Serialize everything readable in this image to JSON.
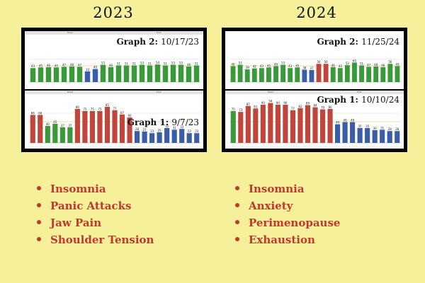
{
  "colors": {
    "background": "#f6f09a",
    "symptom_text": "#c0392b",
    "green": "#3a9a3a",
    "red": "#c0463b",
    "blue": "#3a5da8"
  },
  "columns": [
    {
      "year": "2023",
      "graphs": [
        {
          "label": "Graph 2:",
          "date": "10/17/23",
          "head_left": "Head",
          "head_right": "Foot",
          "chart_data": {
            "type": "bar",
            "values": [
              43,
              45,
              46,
              45,
              47,
              48,
              47,
              33,
              40,
              53,
              46,
              51,
              51,
              51,
              53,
              51,
              54,
              51,
              53,
              53,
              48,
              51
            ],
            "colors": [
              "g",
              "g",
              "g",
              "g",
              "g",
              "g",
              "g",
              "b",
              "b",
              "g",
              "g",
              "g",
              "g",
              "g",
              "g",
              "g",
              "g",
              "g",
              "g",
              "g",
              "g",
              "g"
            ]
          }
        },
        {
          "label": "Graph 1:",
          "date": "9/7/23",
          "head_left": "Head",
          "head_right": "Foot",
          "chart_data": {
            "type": "bar",
            "values": [
              66,
              66,
              40,
              45,
              37,
              37,
              80,
              75,
              75,
              75,
              85,
              77,
              67,
              60,
              28,
              27,
              23,
              25,
              35,
              31,
              33,
              23,
              23
            ],
            "colors": [
              "r",
              "r",
              "g",
              "g",
              "g",
              "g",
              "r",
              "r",
              "r",
              "r",
              "r",
              "r",
              "r",
              "r",
              "b",
              "b",
              "b",
              "b",
              "b",
              "b",
              "b",
              "b",
              "b"
            ]
          }
        }
      ],
      "symptoms": [
        "Insomnia",
        "Panic Attacks",
        "Jaw Pain",
        "Shoulder Tension"
      ]
    },
    {
      "year": "2024",
      "graphs": [
        {
          "label": "Graph 2:",
          "date": "11/25/24",
          "head_left": "Head",
          "head_right": "Foot",
          "chart_data": {
            "type": "bar",
            "values": [
              49,
              53,
              39,
              42,
              43,
              45,
              49,
              53,
              43,
              45,
              38,
              37,
              56,
              56,
              46,
              43,
              52,
              60,
              51,
              47,
              48,
              46,
              56,
              49
            ],
            "colors": [
              "g",
              "g",
              "g",
              "g",
              "g",
              "g",
              "g",
              "g",
              "g",
              "g",
              "b",
              "b",
              "r",
              "r",
              "g",
              "g",
              "g",
              "g",
              "g",
              "g",
              "g",
              "g",
              "g",
              "g"
            ]
          }
        },
        {
          "label": "Graph 1:",
          "date": "10/10/24",
          "head_left": "Head",
          "head_right": "Foot",
          "chart_data": {
            "type": "bar",
            "values": [
              75,
              73,
              87,
              81,
              90,
              94,
              90,
              90,
              77,
              82,
              89,
              84,
              79,
              80,
              44,
              49,
              49,
              35,
              35,
              30,
              31,
              28,
              28
            ],
            "colors": [
              "g",
              "r",
              "r",
              "r",
              "r",
              "r",
              "r",
              "r",
              "r",
              "r",
              "r",
              "r",
              "r",
              "r",
              "b",
              "b",
              "b",
              "b",
              "b",
              "b",
              "b",
              "b",
              "b"
            ]
          }
        }
      ],
      "symptoms": [
        "Insomnia",
        "Anxiety",
        "Perimenopause",
        "Exhaustion"
      ]
    }
  ]
}
